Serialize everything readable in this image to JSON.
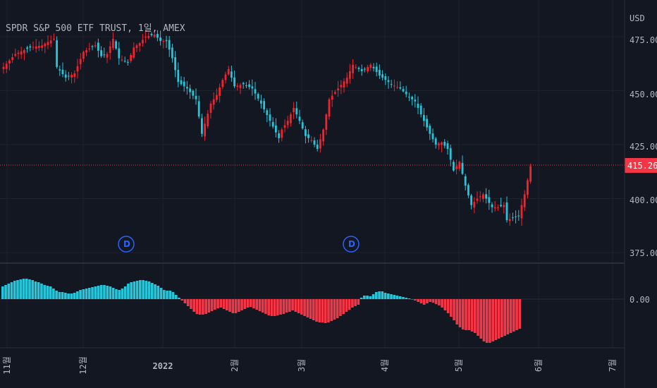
{
  "symbol_title": "SPDR S&P 500 ETF TRUST, 1일, AMEX",
  "currency": "USD",
  "colors": {
    "background": "#131722",
    "up": "#f5222d",
    "down": "#26c6da",
    "hist_pos": "#26c6da",
    "hist_neg": "#f23645",
    "grid": "#1e222d",
    "separator": "#2a2e39",
    "price_line": "#f23645",
    "dividend": "#2962ff"
  },
  "price_axis": {
    "ticks": [
      "475.00",
      "450.00",
      "425.00",
      "400.00",
      "375.00"
    ],
    "last_price": "415.26"
  },
  "oscillator_axis": {
    "ticks": [
      "0.00"
    ]
  },
  "time_axis": {
    "labels": [
      "11월",
      "12월",
      "2022",
      "2월",
      "3월",
      "4월",
      "5월",
      "6월",
      "7월"
    ]
  },
  "dividend_markers": [
    "D",
    "D"
  ],
  "chart_data": {
    "type": "candlestick",
    "ylim": [
      370,
      480
    ],
    "close_path": [
      [
        0,
        461
      ],
      [
        4,
        467
      ],
      [
        9,
        470
      ],
      [
        13,
        471
      ],
      [
        17,
        474
      ],
      [
        18,
        461
      ],
      [
        21,
        456
      ],
      [
        24,
        458
      ],
      [
        27,
        468
      ],
      [
        31,
        471
      ],
      [
        33,
        466
      ],
      [
        35,
        467
      ],
      [
        37,
        474
      ],
      [
        39,
        465
      ],
      [
        42,
        463
      ],
      [
        44,
        470
      ],
      [
        46,
        472
      ],
      [
        48,
        475
      ],
      [
        51,
        476
      ],
      [
        53,
        473
      ],
      [
        55,
        473
      ],
      [
        57,
        465
      ],
      [
        59,
        454
      ],
      [
        62,
        451
      ],
      [
        65,
        446
      ],
      [
        67,
        430
      ],
      [
        70,
        444
      ],
      [
        72,
        448
      ],
      [
        74,
        455
      ],
      [
        76,
        460
      ],
      [
        78,
        452
      ],
      [
        81,
        453
      ],
      [
        84,
        451
      ],
      [
        87,
        444
      ],
      [
        90,
        436
      ],
      [
        93,
        428
      ],
      [
        94,
        432
      ],
      [
        96,
        436
      ],
      [
        98,
        442
      ],
      [
        100,
        436
      ],
      [
        102,
        429
      ],
      [
        104,
        427
      ],
      [
        106,
        423
      ],
      [
        108,
        432
      ],
      [
        110,
        446
      ],
      [
        113,
        451
      ],
      [
        116,
        456
      ],
      [
        118,
        462
      ],
      [
        121,
        459
      ],
      [
        124,
        462
      ],
      [
        127,
        457
      ],
      [
        129,
        455
      ],
      [
        131,
        453
      ],
      [
        134,
        451
      ],
      [
        137,
        447
      ],
      [
        139,
        445
      ],
      [
        141,
        439
      ],
      [
        144,
        430
      ],
      [
        146,
        425
      ],
      [
        148,
        426
      ],
      [
        150,
        423
      ],
      [
        152,
        413
      ],
      [
        154,
        417
      ],
      [
        156,
        406
      ],
      [
        158,
        397
      ],
      [
        160,
        400
      ],
      [
        162,
        402
      ],
      [
        165,
        396
      ],
      [
        167,
        396
      ],
      [
        169,
        397
      ],
      [
        170,
        390
      ],
      [
        172,
        391
      ],
      [
        174,
        392
      ],
      [
        176,
        402
      ],
      [
        178,
        415
      ]
    ],
    "oscillator": {
      "label": "",
      "values": [
        18,
        20,
        22,
        24,
        26,
        27,
        28,
        29,
        29,
        28,
        27,
        25,
        24,
        22,
        20,
        19,
        18,
        15,
        12,
        10,
        10,
        9,
        8,
        8,
        9,
        11,
        13,
        14,
        15,
        16,
        17,
        18,
        19,
        20,
        20,
        19,
        18,
        16,
        14,
        13,
        15,
        18,
        22,
        24,
        25,
        26,
        27,
        27,
        26,
        25,
        23,
        21,
        19,
        16,
        13,
        12,
        12,
        10,
        6,
        2,
        -2,
        -6,
        -10,
        -14,
        -18,
        -21,
        -22,
        -22,
        -21,
        -19,
        -17,
        -15,
        -13,
        -12,
        -14,
        -16,
        -18,
        -20,
        -20,
        -18,
        -16,
        -14,
        -12,
        -11,
        -13,
        -15,
        -17,
        -19,
        -21,
        -23,
        -24,
        -24,
        -23,
        -22,
        -21,
        -19,
        -18,
        -16,
        -18,
        -20,
        -22,
        -24,
        -26,
        -28,
        -30,
        -32,
        -33,
        -33,
        -34,
        -33,
        -31,
        -29,
        -27,
        -24,
        -21,
        -18,
        -15,
        -12,
        -10,
        -8,
        2,
        5,
        5,
        4,
        7,
        10,
        11,
        11,
        9,
        8,
        7,
        6,
        5,
        4,
        3,
        2,
        1,
        0,
        -2,
        -4,
        -6,
        -8,
        -6,
        -4,
        -5,
        -7,
        -9,
        -12,
        -16,
        -20,
        -25,
        -30,
        -36,
        -40,
        -43,
        -44,
        -44,
        -46,
        -48,
        -52,
        -56,
        -60,
        -62,
        -62,
        -60,
        -58,
        -56,
        -54,
        -52,
        -50,
        -48,
        -46,
        -44,
        -42
      ]
    }
  }
}
